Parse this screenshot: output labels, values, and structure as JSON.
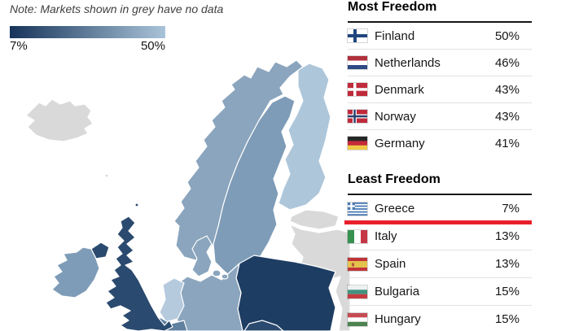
{
  "note": "Note: Markets shown in grey have no data",
  "legend": {
    "min_label": "7%",
    "max_label": "50%",
    "gradient_start": "#17345a",
    "gradient_end": "#a9c3d8"
  },
  "highlight_color": "#e8202b",
  "map": {
    "colors": {
      "no_data": "#d9d9d9",
      "iceland": "#d9d9d9",
      "norway": "#8aa5bd",
      "sweden": "#7e9cb8",
      "finland": "#adc6da",
      "estonia": "#d9d9d9",
      "east_region": "#d9d9d9",
      "denmark": "#8aa5bd",
      "germany": "#8aa5bd",
      "poland": "#1e3d63",
      "czechia": "#2b4a6f",
      "netherlands": "#b6cade",
      "belgium": "#60819f",
      "uk": "#2b4a6f",
      "northern_ireland": "#2b4a6f",
      "ireland": "#7e9cb8",
      "faroe": "#d9d9d9",
      "shetland": "#2b4a6f"
    }
  },
  "most_freedom": {
    "title": "Most Freedom",
    "rows": [
      {
        "country": "Finland",
        "value": "50%",
        "flag": "fi"
      },
      {
        "country": "Netherlands",
        "value": "46%",
        "flag": "nl"
      },
      {
        "country": "Denmark",
        "value": "43%",
        "flag": "dk"
      },
      {
        "country": "Norway",
        "value": "43%",
        "flag": "no"
      },
      {
        "country": "Germany",
        "value": "41%",
        "flag": "de"
      }
    ]
  },
  "least_freedom": {
    "title": "Least Freedom",
    "rows": [
      {
        "country": "Greece",
        "value": "7%",
        "flag": "gr",
        "highlighted": true
      },
      {
        "country": "Italy",
        "value": "13%",
        "flag": "it"
      },
      {
        "country": "Spain",
        "value": "13%",
        "flag": "es"
      },
      {
        "country": "Bulgaria",
        "value": "15%",
        "flag": "bg"
      },
      {
        "country": "Hungary",
        "value": "15%",
        "flag": "hu"
      }
    ]
  },
  "chart_data": [
    {
      "type": "heatmap",
      "subtype": "choropleth-map-europe",
      "title": "",
      "note": "Note: Markets shown in grey have no data",
      "colorscale": {
        "min": 7,
        "max": 50,
        "min_label": "7%",
        "max_label": "50%",
        "min_color": "#17345a",
        "max_color": "#a9c3d8"
      },
      "values": {
        "Finland": 50,
        "Netherlands": 46,
        "Denmark": 43,
        "Norway": 43,
        "Germany": 41,
        "Greece": 7,
        "Italy": 13,
        "Spain": 13,
        "Bulgaria": 15,
        "Hungary": 15
      },
      "no_data_regions": [
        "Iceland",
        "Estonia",
        "Latvia",
        "Lithuania"
      ],
      "legend_position": "top-left"
    },
    {
      "type": "table",
      "title": "Most Freedom",
      "rows": [
        [
          "Finland",
          "50%"
        ],
        [
          "Netherlands",
          "46%"
        ],
        [
          "Denmark",
          "43%"
        ],
        [
          "Norway",
          "43%"
        ],
        [
          "Germany",
          "41%"
        ]
      ]
    },
    {
      "type": "table",
      "title": "Least Freedom",
      "annotation": "Greece row underlined in red",
      "rows": [
        [
          "Greece",
          "7%"
        ],
        [
          "Italy",
          "13%"
        ],
        [
          "Spain",
          "13%"
        ],
        [
          "Bulgaria",
          "15%"
        ],
        [
          "Hungary",
          "15%"
        ]
      ]
    }
  ]
}
